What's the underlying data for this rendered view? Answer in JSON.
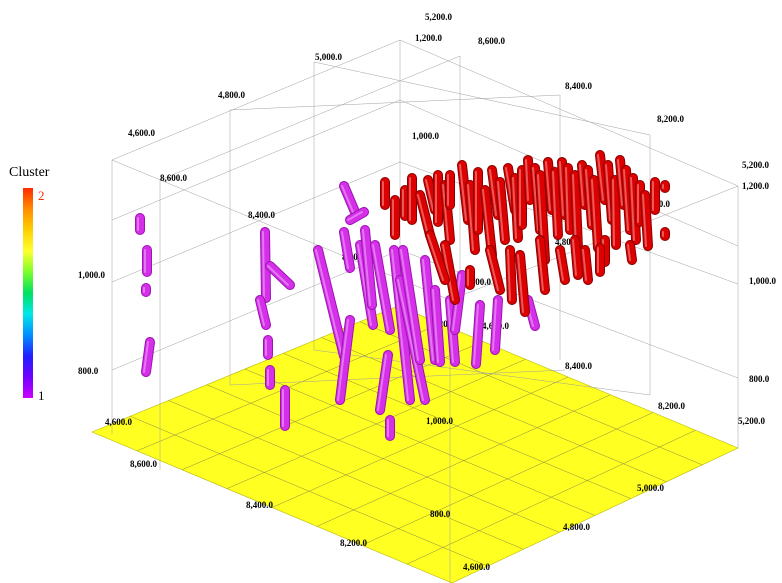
{
  "chart_data": {
    "type": "scatter",
    "title": "",
    "legend": {
      "title": "Cluster",
      "max_label": "2",
      "min_label": "1",
      "placement": "left",
      "colormap": [
        "#ff2a00",
        "#ff8c00",
        "#ffd000",
        "#ffff30",
        "#7cff2a",
        "#00e060",
        "#00e8e8",
        "#0090ff",
        "#2020ff",
        "#7000ff",
        "#cc00ff"
      ]
    },
    "colors": {
      "cluster_1": "#d52fea",
      "cluster_2": "#dd0000",
      "floor": "#ffff22"
    },
    "axes": {
      "x": {
        "range": [
          8200,
          8600
        ],
        "ticks": [
          "8,200.0",
          "8,400.0",
          "8,600.0"
        ]
      },
      "y": {
        "range": [
          4600,
          5200
        ],
        "ticks": [
          "4,600.0",
          "4,800.0",
          "5,000.0",
          "5,200.0"
        ]
      },
      "z": {
        "range": [
          800,
          1200
        ],
        "ticks": [
          "800.0",
          "1,000.0",
          "1,200.0"
        ]
      }
    },
    "grid": true,
    "tick_labels": [
      "5,200.0",
      "1,200.0",
      "8,600.0",
      "5,000.0",
      "8,400.0",
      "4,800.0",
      "8,200.0",
      "4,600.0",
      "1,000.0",
      "5,200.0",
      "1,200.0",
      "8,600.0",
      "8,400.0",
      "1,000.0",
      "5,000.0",
      "8,200.0",
      "4,800.0",
      "4,600.0",
      "1,000.0",
      "1,200.0",
      "800.0",
      "4,600.0",
      "8,400.0",
      "800.0",
      "1,000.0",
      "8,200.0",
      "4,600.0",
      "8,600.0",
      "8,400.0",
      "800.0",
      "5,000.0",
      "4,800.0",
      "8,200.0",
      "4,600.0",
      "5,200.0"
    ],
    "series": [
      {
        "name": "1",
        "segments": [
          [
            [
              140,
              218
            ],
            [
              140,
              230
            ]
          ],
          [
            [
              147,
              250
            ],
            [
              147,
              272
            ]
          ],
          [
            [
              146,
              288
            ],
            [
              146,
              292
            ]
          ],
          [
            [
              150,
              342
            ],
            [
              146,
              372
            ]
          ],
          [
            [
              265,
              232
            ],
            [
              266,
              298
            ]
          ],
          [
            [
              260,
              300
            ],
            [
              266,
              325
            ]
          ],
          [
            [
              270,
              266
            ],
            [
              290,
              285
            ]
          ],
          [
            [
              268,
              340
            ],
            [
              268,
              355
            ]
          ],
          [
            [
              270,
              370
            ],
            [
              270,
              385
            ]
          ],
          [
            [
              285,
              390
            ],
            [
              285,
              426
            ]
          ],
          [
            [
              344,
              186
            ],
            [
              355,
              212
            ]
          ],
          [
            [
              350,
              220
            ],
            [
              364,
              212
            ]
          ],
          [
            [
              344,
              232
            ],
            [
              350,
              268
            ]
          ],
          [
            [
              318,
              250
            ],
            [
              344,
              356
            ]
          ],
          [
            [
              350,
              320
            ],
            [
              340,
              400
            ]
          ],
          [
            [
              360,
              245
            ],
            [
              373,
              325
            ]
          ],
          [
            [
              365,
              230
            ],
            [
              372,
              305
            ]
          ],
          [
            [
              375,
              245
            ],
            [
              390,
              330
            ]
          ],
          [
            [
              388,
              355
            ],
            [
              380,
              410
            ]
          ],
          [
            [
              390,
              420
            ],
            [
              390,
              436
            ]
          ],
          [
            [
              394,
              250
            ],
            [
              410,
              400
            ]
          ],
          [
            [
              400,
              280
            ],
            [
              425,
              400
            ]
          ],
          [
            [
              403,
              250
            ],
            [
              420,
              360
            ]
          ],
          [
            [
              425,
              260
            ],
            [
              435,
              360
            ]
          ],
          [
            [
              435,
              290
            ],
            [
              440,
              362
            ]
          ],
          [
            [
              450,
              300
            ],
            [
              455,
              362
            ]
          ],
          [
            [
              462,
              275
            ],
            [
              455,
              330
            ]
          ],
          [
            [
              480,
              305
            ],
            [
              476,
              364
            ]
          ],
          [
            [
              498,
              300
            ],
            [
              495,
              350
            ]
          ],
          [
            [
              528,
              300
            ],
            [
              535,
              326
            ]
          ]
        ]
      },
      {
        "name": "2",
        "segments": [
          [
            [
              385,
              182
            ],
            [
              385,
              205
            ]
          ],
          [
            [
              395,
              200
            ],
            [
              395,
              235
            ]
          ],
          [
            [
              405,
              190
            ],
            [
              405,
              216
            ]
          ],
          [
            [
              412,
              178
            ],
            [
              412,
              220
            ]
          ],
          [
            [
              420,
              195
            ],
            [
              430,
              235
            ]
          ],
          [
            [
              428,
              180
            ],
            [
              435,
              210
            ]
          ],
          [
            [
              438,
              175
            ],
            [
              438,
              222
            ]
          ],
          [
            [
              445,
              185
            ],
            [
              450,
              240
            ]
          ],
          [
            [
              450,
              175
            ],
            [
              450,
              205
            ]
          ],
          [
            [
              462,
              165
            ],
            [
              468,
              220
            ]
          ],
          [
            [
              470,
              185
            ],
            [
              475,
              250
            ]
          ],
          [
            [
              478,
              172
            ],
            [
              478,
              230
            ]
          ],
          [
            [
              485,
              190
            ],
            [
              492,
              255
            ]
          ],
          [
            [
              492,
              170
            ],
            [
              498,
              215
            ]
          ],
          [
            [
              500,
              182
            ],
            [
              505,
              240
            ]
          ],
          [
            [
              508,
              168
            ],
            [
              515,
              210
            ]
          ],
          [
            [
              515,
              178
            ],
            [
              518,
              238
            ]
          ],
          [
            [
              522,
              170
            ],
            [
              522,
              225
            ]
          ],
          [
            [
              528,
              160
            ],
            [
              530,
              200
            ]
          ],
          [
            [
              535,
              168
            ],
            [
              540,
              230
            ]
          ],
          [
            [
              540,
              175
            ],
            [
              545,
              260
            ]
          ],
          [
            [
              548,
              162
            ],
            [
              552,
              210
            ]
          ],
          [
            [
              555,
              172
            ],
            [
              558,
              235
            ]
          ],
          [
            [
              562,
              162
            ],
            [
              565,
              215
            ]
          ],
          [
            [
              568,
              168
            ],
            [
              570,
              230
            ]
          ],
          [
            [
              575,
              175
            ],
            [
              578,
              250
            ]
          ],
          [
            [
              582,
              165
            ],
            [
              585,
              205
            ]
          ],
          [
            [
              588,
              170
            ],
            [
              592,
              225
            ]
          ],
          [
            [
              594,
              180
            ],
            [
              598,
              248
            ]
          ],
          [
            [
              600,
              155
            ],
            [
              605,
              200
            ]
          ],
          [
            [
              608,
              165
            ],
            [
              612,
              220
            ]
          ],
          [
            [
              615,
              180
            ],
            [
              616,
              245
            ]
          ],
          [
            [
              620,
              160
            ],
            [
              624,
              205
            ]
          ],
          [
            [
              626,
              170
            ],
            [
              630,
              230
            ]
          ],
          [
            [
              633,
              178
            ],
            [
              636,
              240
            ]
          ],
          [
            [
              640,
              185
            ],
            [
              640,
              222
            ]
          ],
          [
            [
              645,
              195
            ],
            [
              648,
              246
            ]
          ],
          [
            [
              655,
              182
            ],
            [
              655,
              210
            ]
          ],
          [
            [
              665,
              185
            ],
            [
              665,
              188
            ]
          ],
          [
            [
              665,
              232
            ],
            [
              665,
              236
            ]
          ],
          [
            [
              630,
              245
            ],
            [
              632,
              260
            ]
          ],
          [
            [
              605,
              240
            ],
            [
              605,
              262
            ]
          ],
          [
            [
              470,
              270
            ],
            [
              470,
              285
            ]
          ],
          [
            [
              490,
              250
            ],
            [
              500,
              290
            ]
          ],
          [
            [
              510,
              250
            ],
            [
              512,
              300
            ]
          ],
          [
            [
              520,
              255
            ],
            [
              525,
              312
            ]
          ],
          [
            [
              540,
              240
            ],
            [
              545,
              290
            ]
          ],
          [
            [
              560,
              250
            ],
            [
              565,
              280
            ]
          ],
          [
            [
              575,
              240
            ],
            [
              578,
              275
            ]
          ],
          [
            [
              585,
              250
            ],
            [
              588,
              280
            ]
          ],
          [
            [
              600,
              248
            ],
            [
              600,
              272
            ]
          ],
          [
            [
              445,
              245
            ],
            [
              455,
              300
            ]
          ],
          [
            [
              430,
              235
            ],
            [
              445,
              280
            ]
          ]
        ]
      }
    ]
  }
}
